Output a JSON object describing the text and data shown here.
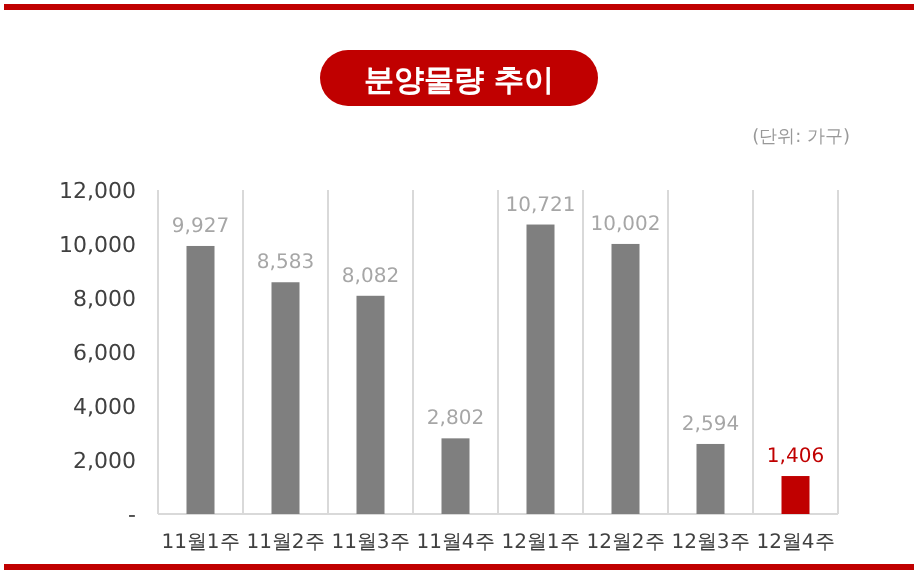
{
  "chart_data": {
    "type": "bar",
    "title": "분양물량 추이",
    "subtitle": "(단위: 가구)",
    "categories": [
      "11월1주",
      "11월2주",
      "11월3주",
      "11월4주",
      "12월1주",
      "12월2주",
      "12월3주",
      "12월4주"
    ],
    "values": [
      9927,
      8583,
      8082,
      2802,
      10721,
      10002,
      2594,
      1406
    ],
    "colors": [
      "#7f7f7f",
      "#7f7f7f",
      "#7f7f7f",
      "#7f7f7f",
      "#7f7f7f",
      "#7f7f7f",
      "#7f7f7f",
      "#c00000"
    ],
    "value_labels": [
      "9,927",
      "8,583",
      "8,082",
      "2,802",
      "10,721",
      "10,002",
      "2,594",
      "1,406"
    ],
    "ylim": [
      0,
      12000
    ],
    "yticks": [
      {
        "value": 0,
        "label": "-"
      },
      {
        "value": 2000,
        "label": "2,000"
      },
      {
        "value": 4000,
        "label": "4,000"
      },
      {
        "value": 6000,
        "label": "6,000"
      },
      {
        "value": 8000,
        "label": "8,000"
      },
      {
        "value": 10000,
        "label": "10,000"
      },
      {
        "value": 12000,
        "label": "12,000"
      }
    ],
    "grid": "x"
  }
}
